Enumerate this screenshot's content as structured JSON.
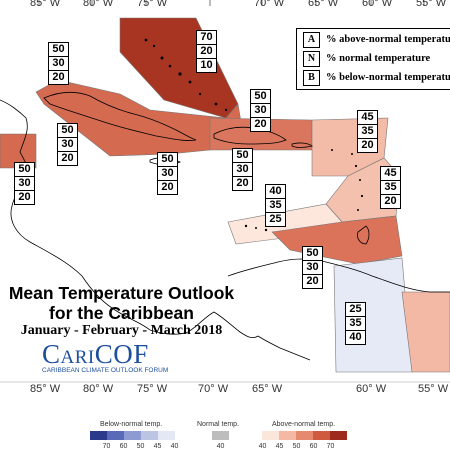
{
  "title": {
    "line1": "Mean Temperature Outlook",
    "line2": "for the Caribbean",
    "period": "January - February - March 2018"
  },
  "logo": {
    "name": "CariCOF",
    "subtitle": "CARIBBEAN CLIMATE OUTLOOK FORUM"
  },
  "legend": [
    {
      "key": "A",
      "text": "% above-normal temperature"
    },
    {
      "key": "N",
      "text": "% normal temperature"
    },
    {
      "key": "B",
      "text": "% below-normal temperature"
    }
  ],
  "longitudes_top": [
    "85° W",
    "80° W",
    "75° W",
    "70° W",
    "65° W",
    "60° W",
    "55° W"
  ],
  "longitudes_bottom": [
    "85° W",
    "80° W",
    "75° W",
    "70° W",
    "65° W",
    "60° W",
    "55° W"
  ],
  "scale": {
    "below_label": "Below-normal temp.",
    "normal_label": "Normal temp.",
    "above_label": "Above-normal temp.",
    "below_values": [
      "70",
      "60",
      "50",
      "45",
      "40"
    ],
    "normal_values": [
      "40"
    ],
    "above_values": [
      "40",
      "45",
      "50",
      "60",
      "70"
    ],
    "below_colors": [
      "#2b3a8a",
      "#5b6ab8",
      "#8e9bd2",
      "#bcc4e4",
      "#e4e8f4"
    ],
    "normal_colors": [
      "#bdbdbd"
    ],
    "above_colors": [
      "#fbe6dc",
      "#f4b8a3",
      "#e58a6f",
      "#cf5a3f",
      "#9e2a1e"
    ]
  },
  "forecast_boxes": [
    {
      "id": "bahamas",
      "a": "70",
      "n": "20",
      "b": "10"
    },
    {
      "id": "cuba",
      "a": "50",
      "n": "30",
      "b": "20"
    },
    {
      "id": "turks-caicos",
      "a": "50",
      "n": "30",
      "b": "20"
    },
    {
      "id": "belize-central",
      "a": "50",
      "n": "30",
      "b": "20"
    },
    {
      "id": "central-america",
      "a": "50",
      "n": "30",
      "b": "20"
    },
    {
      "id": "jamaica",
      "a": "50",
      "n": "30",
      "b": "20"
    },
    {
      "id": "hispaniola",
      "a": "50",
      "n": "30",
      "b": "20"
    },
    {
      "id": "leeward-islands",
      "a": "45",
      "n": "35",
      "b": "20"
    },
    {
      "id": "windward-islands",
      "a": "45",
      "n": "35",
      "b": "20"
    },
    {
      "id": "abc-islands",
      "a": "40",
      "n": "35",
      "b": "25"
    },
    {
      "id": "trinidad",
      "a": "50",
      "n": "30",
      "b": "20"
    },
    {
      "id": "guyana",
      "a": "25",
      "n": "35",
      "b": "40"
    }
  ]
}
